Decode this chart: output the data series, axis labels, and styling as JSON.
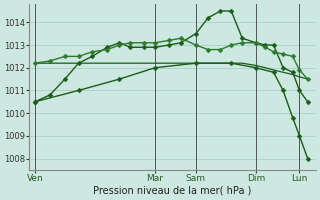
{
  "title": "Pression niveau de la mer( hPa )",
  "bg_color": "#cce8e0",
  "grid_color": "#b0d4cc",
  "line_color_dark": "#1a5c1a",
  "line_color_med": "#2d7a2d",
  "ylim": [
    1007.5,
    1014.8
  ],
  "yticks": [
    1008,
    1009,
    1010,
    1011,
    1012,
    1013,
    1014
  ],
  "day_labels": [
    "Ven",
    "Mar",
    "Sam",
    "Dim",
    "Lun"
  ],
  "vline_positions": [
    0.0,
    0.44,
    0.59,
    0.81,
    0.97
  ],
  "series": [
    {
      "x": [
        0.0,
        0.055,
        0.11,
        0.16,
        0.21,
        0.265,
        0.31,
        0.35,
        0.4,
        0.44,
        0.49,
        0.535,
        0.59,
        0.635,
        0.68,
        0.72,
        0.76,
        0.81,
        0.845,
        0.875,
        0.91,
        0.945,
        0.97,
        1.0
      ],
      "y": [
        1010.5,
        1010.8,
        1011.5,
        1012.2,
        1012.5,
        1012.9,
        1013.1,
        1012.9,
        1012.9,
        1012.9,
        1013.0,
        1013.1,
        1013.5,
        1014.2,
        1014.5,
        1014.5,
        1013.3,
        1013.1,
        1013.0,
        1013.0,
        1012.0,
        1011.8,
        1011.0,
        1010.5
      ],
      "color": "#1a5c1a",
      "marker": "D",
      "markersize": 2.5,
      "linewidth": 1.0,
      "has_markers": true
    },
    {
      "x": [
        0.0,
        0.055,
        0.11,
        0.16,
        0.21,
        0.265,
        0.31,
        0.35,
        0.4,
        0.44,
        0.49,
        0.535,
        0.59,
        0.635,
        0.68,
        0.72,
        0.76,
        0.81,
        0.845,
        0.875,
        0.91,
        0.945,
        0.97,
        1.0
      ],
      "y": [
        1012.2,
        1012.3,
        1012.5,
        1012.5,
        1012.7,
        1012.8,
        1013.0,
        1013.1,
        1013.1,
        1013.1,
        1013.2,
        1013.3,
        1013.0,
        1012.8,
        1012.8,
        1013.0,
        1013.1,
        1013.1,
        1012.9,
        1012.7,
        1012.6,
        1012.5,
        1011.9,
        1011.5
      ],
      "color": "#2d7a2d",
      "marker": "D",
      "markersize": 2.5,
      "linewidth": 1.0,
      "has_markers": true
    },
    {
      "x": [
        0.0,
        0.055,
        0.11,
        0.16,
        0.21,
        0.265,
        0.31,
        0.35,
        0.4,
        0.44,
        0.49,
        0.535,
        0.59,
        0.635,
        0.68,
        0.72,
        0.76,
        0.81,
        0.845,
        0.875,
        0.91,
        0.945,
        0.97,
        1.0
      ],
      "y": [
        1012.2,
        1012.2,
        1012.2,
        1012.2,
        1012.2,
        1012.2,
        1012.2,
        1012.2,
        1012.2,
        1012.2,
        1012.2,
        1012.2,
        1012.2,
        1012.2,
        1012.2,
        1012.2,
        1012.2,
        1012.1,
        1012.0,
        1011.9,
        1011.8,
        1011.7,
        1011.6,
        1011.5
      ],
      "color": "#1a5c1a",
      "marker": null,
      "markersize": 0,
      "linewidth": 0.9,
      "has_markers": false
    },
    {
      "x": [
        0.0,
        0.16,
        0.31,
        0.44,
        0.59,
        0.72,
        0.81,
        0.875,
        0.91,
        0.945,
        0.97,
        1.0
      ],
      "y": [
        1010.5,
        1011.0,
        1011.5,
        1012.0,
        1012.2,
        1012.2,
        1012.0,
        1011.8,
        1011.0,
        1009.8,
        1009.0,
        1008.0
      ],
      "color": "#1a5c1a",
      "marker": "D",
      "markersize": 2.5,
      "linewidth": 1.0,
      "has_markers": true
    }
  ]
}
